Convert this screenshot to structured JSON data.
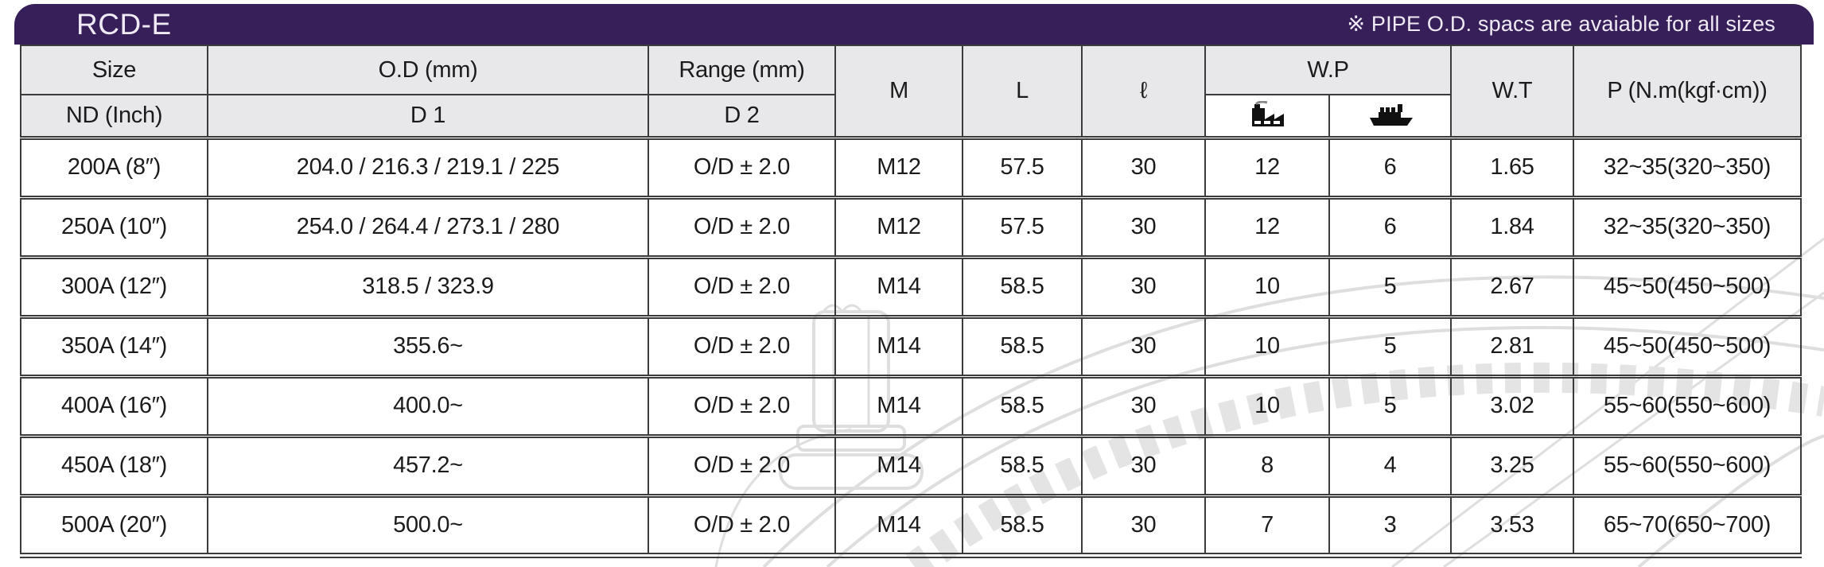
{
  "header": {
    "title": "RCD-E",
    "note": "※ PIPE O.D. spacs are avaiable for all sizes"
  },
  "table": {
    "col_headers": {
      "size": "Size",
      "size_sub": "ND (Inch)",
      "od": "O.D (mm)",
      "od_sub": "D 1",
      "range": "Range (mm)",
      "range_sub": "D 2",
      "m": "M",
      "l": "L",
      "ell": "ℓ",
      "wp": "W.P",
      "wp_sub_icons": [
        "factory-icon",
        "ship-icon"
      ],
      "wt": "W.T",
      "p": "P (N.m(kgf·cm))"
    },
    "rows": [
      {
        "size": "200A (8″)",
        "d1": "204.0 / 216.3 / 219.1 / 225",
        "d2": "O/D ± 2.0",
        "m": "M12",
        "l": "57.5",
        "ell": "30",
        "wp_factory": "12",
        "wp_ship": "6",
        "wt": "1.65",
        "p": "32~35(320~350)"
      },
      {
        "size": "250A (10″)",
        "d1": "254.0 / 264.4 / 273.1 / 280",
        "d2": "O/D ± 2.0",
        "m": "M12",
        "l": "57.5",
        "ell": "30",
        "wp_factory": "12",
        "wp_ship": "6",
        "wt": "1.84",
        "p": "32~35(320~350)"
      },
      {
        "size": "300A (12″)",
        "d1": "318.5 / 323.9",
        "d2": "O/D ± 2.0",
        "m": "M14",
        "l": "58.5",
        "ell": "30",
        "wp_factory": "10",
        "wp_ship": "5",
        "wt": "2.67",
        "p": "45~50(450~500)"
      },
      {
        "size": "350A (14″)",
        "d1": "355.6~",
        "d2": "O/D ± 2.0",
        "m": "M14",
        "l": "58.5",
        "ell": "30",
        "wp_factory": "10",
        "wp_ship": "5",
        "wt": "2.81",
        "p": "45~50(450~500)"
      },
      {
        "size": "400A (16″)",
        "d1": "400.0~",
        "d2": "O/D ± 2.0",
        "m": "M14",
        "l": "58.5",
        "ell": "30",
        "wp_factory": "10",
        "wp_ship": "5",
        "wt": "3.02",
        "p": "55~60(550~600)"
      },
      {
        "size": "450A (18″)",
        "d1": "457.2~",
        "d2": "O/D ± 2.0",
        "m": "M14",
        "l": "58.5",
        "ell": "30",
        "wp_factory": "8",
        "wp_ship": "4",
        "wt": "3.25",
        "p": "55~60(550~600)"
      },
      {
        "size": "500A (20″)",
        "d1": "500.0~",
        "d2": "O/D ± 2.0",
        "m": "M14",
        "l": "58.5",
        "ell": "30",
        "wp_factory": "7",
        "wp_ship": "3",
        "wt": "3.53",
        "p": "65~70(650~700)"
      }
    ]
  },
  "colors": {
    "bar": "#37205A",
    "header_bg": "#E8E7EA",
    "border": "#3b3b3b",
    "watermark": "#dedede",
    "icon": "#111111"
  }
}
